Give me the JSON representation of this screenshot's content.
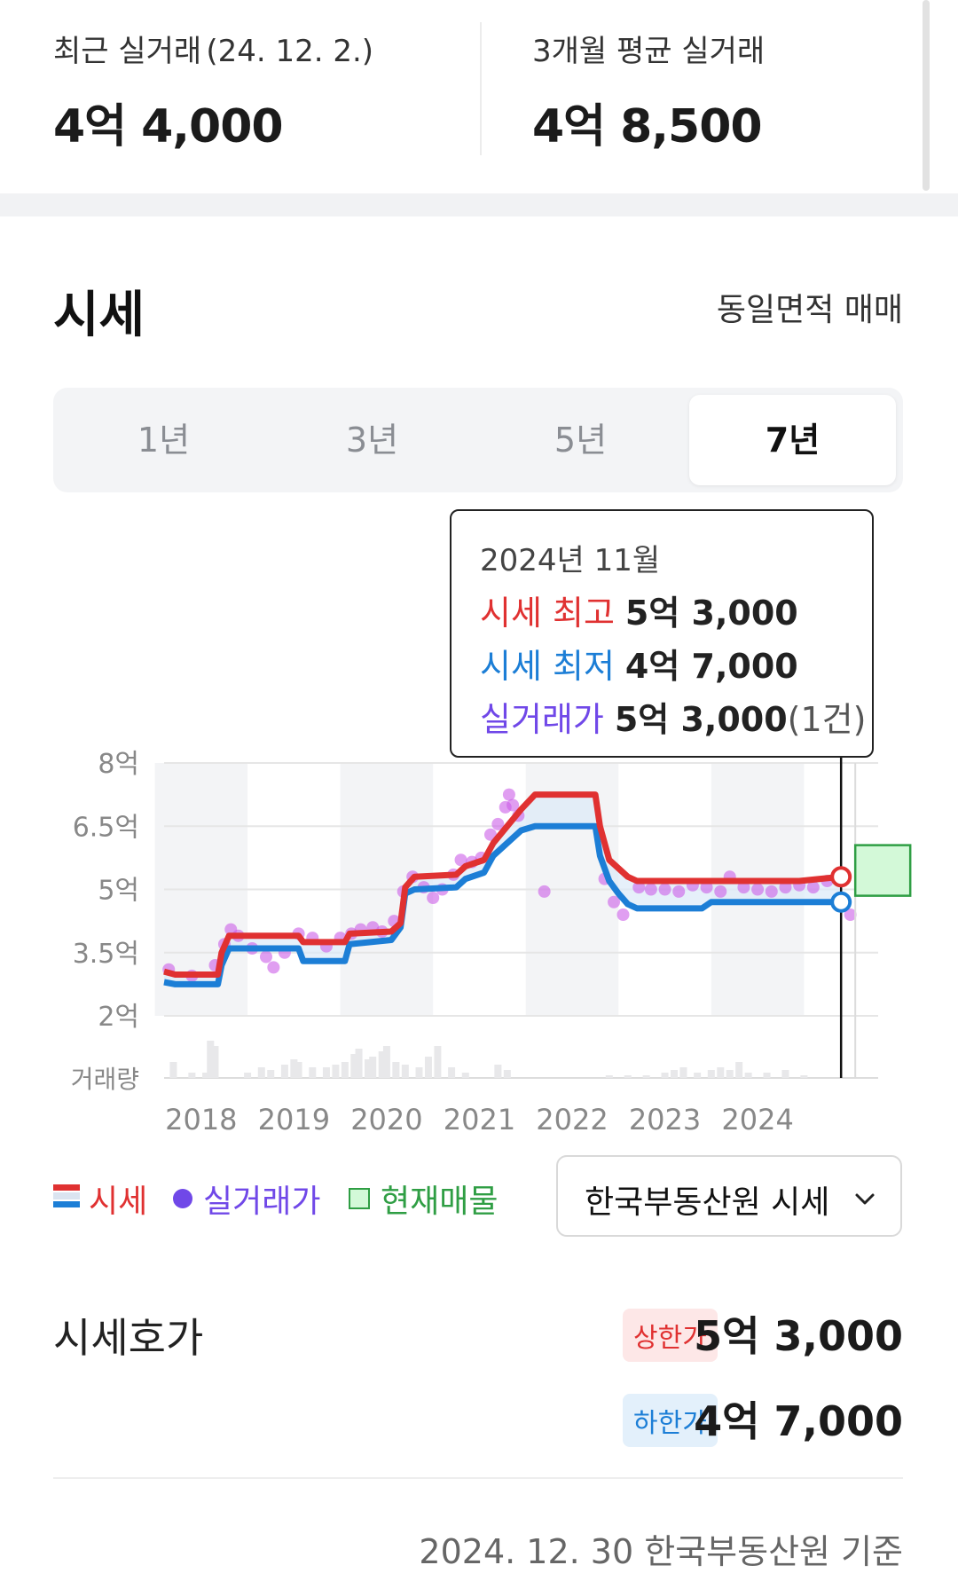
{
  "summary": {
    "recent": {
      "label": "최근 실거래",
      "date": "(24. 12. 2.)",
      "value": "4억 4,000"
    },
    "avg3m": {
      "label": "3개월 평균 실거래",
      "value": "4억 8,500"
    }
  },
  "section": {
    "title": "시세",
    "filter": "동일면적 매매"
  },
  "tabs": [
    {
      "label": "1년",
      "active": false
    },
    {
      "label": "3년",
      "active": false
    },
    {
      "label": "5년",
      "active": false
    },
    {
      "label": "7년",
      "active": true
    }
  ],
  "tooltip": {
    "date": "2024년 11월",
    "high_label": "시세 최고",
    "high_value": "5억 3,000",
    "low_label": "시세 최저",
    "low_value": "4억 7,000",
    "deal_label": "실거래가",
    "deal_value": "5억 3,000",
    "deal_count": "(1건)"
  },
  "legend": {
    "price": "시세",
    "deal": "실거래가",
    "listing": "현재매물"
  },
  "source_select": {
    "value": "한국부동산원 시세"
  },
  "range": {
    "title": "시세호가",
    "high_badge": "상한가",
    "high_value": "5억 3,000",
    "low_badge": "하한가",
    "low_value": "4억 7,000"
  },
  "basis": "2024. 12. 30 한국부동산원 기준",
  "colors": {
    "high": "#e03131",
    "low": "#1c7ed6",
    "deal": "#7048e8",
    "dealDot": "#cc5de8",
    "listing": "#2f9e44",
    "text": "#222222"
  },
  "chart_data": {
    "type": "line",
    "y_ticks": [
      "8억",
      "6.5억",
      "5억",
      "3.5억",
      "2억"
    ],
    "y_values": [
      8,
      6.5,
      5,
      3.5,
      2
    ],
    "volume_label": "거래량",
    "x_ticks": [
      "2018",
      "2019",
      "2020",
      "2021",
      "2022",
      "2023",
      "2024"
    ],
    "ylim": [
      2,
      8
    ],
    "xlim": [
      2017.6,
      2025.3
    ],
    "series": [
      {
        "name": "시세 최고",
        "points": [
          [
            2017.6,
            3.05
          ],
          [
            2017.72,
            2.98
          ],
          [
            2018.18,
            2.98
          ],
          [
            2018.22,
            3.5
          ],
          [
            2018.3,
            3.9
          ],
          [
            2019.05,
            3.9
          ],
          [
            2019.1,
            3.75
          ],
          [
            2019.55,
            3.75
          ],
          [
            2019.6,
            3.95
          ],
          [
            2020.05,
            4.0
          ],
          [
            2020.15,
            4.2
          ],
          [
            2020.2,
            5.05
          ],
          [
            2020.3,
            5.3
          ],
          [
            2020.75,
            5.35
          ],
          [
            2020.85,
            5.55
          ],
          [
            2021.05,
            5.7
          ],
          [
            2021.15,
            6.1
          ],
          [
            2021.3,
            6.5
          ],
          [
            2021.45,
            6.9
          ],
          [
            2021.6,
            7.25
          ],
          [
            2022.25,
            7.25
          ],
          [
            2022.3,
            6.5
          ],
          [
            2022.4,
            5.7
          ],
          [
            2022.5,
            5.5
          ],
          [
            2022.6,
            5.3
          ],
          [
            2022.7,
            5.2
          ],
          [
            2024.45,
            5.2
          ],
          [
            2024.9,
            5.3
          ]
        ]
      },
      {
        "name": "시세 최저",
        "points": [
          [
            2017.6,
            2.8
          ],
          [
            2017.72,
            2.75
          ],
          [
            2018.18,
            2.75
          ],
          [
            2018.22,
            3.2
          ],
          [
            2018.3,
            3.6
          ],
          [
            2019.05,
            3.6
          ],
          [
            2019.1,
            3.3
          ],
          [
            2019.55,
            3.3
          ],
          [
            2019.6,
            3.7
          ],
          [
            2020.05,
            3.8
          ],
          [
            2020.15,
            4.1
          ],
          [
            2020.2,
            4.9
          ],
          [
            2020.3,
            5.0
          ],
          [
            2020.75,
            5.05
          ],
          [
            2020.85,
            5.25
          ],
          [
            2021.05,
            5.4
          ],
          [
            2021.15,
            5.8
          ],
          [
            2021.3,
            6.1
          ],
          [
            2021.45,
            6.4
          ],
          [
            2021.6,
            6.5
          ],
          [
            2022.25,
            6.5
          ],
          [
            2022.3,
            5.8
          ],
          [
            2022.4,
            5.2
          ],
          [
            2022.5,
            4.9
          ],
          [
            2022.6,
            4.65
          ],
          [
            2022.7,
            4.55
          ],
          [
            2023.4,
            4.55
          ],
          [
            2023.5,
            4.7
          ],
          [
            2024.9,
            4.7
          ]
        ]
      }
    ],
    "deals": [
      [
        2017.65,
        3.1
      ],
      [
        2017.9,
        2.95
      ],
      [
        2018.15,
        3.2
      ],
      [
        2018.25,
        3.7
      ],
      [
        2018.32,
        4.05
      ],
      [
        2018.4,
        3.9
      ],
      [
        2018.55,
        3.6
      ],
      [
        2018.7,
        3.4
      ],
      [
        2018.78,
        3.15
      ],
      [
        2018.9,
        3.5
      ],
      [
        2019.05,
        3.95
      ],
      [
        2019.2,
        3.85
      ],
      [
        2019.35,
        3.65
      ],
      [
        2019.5,
        3.85
      ],
      [
        2019.62,
        3.95
      ],
      [
        2019.72,
        4.05
      ],
      [
        2019.85,
        4.1
      ],
      [
        2019.95,
        4.0
      ],
      [
        2020.08,
        4.25
      ],
      [
        2020.18,
        4.95
      ],
      [
        2020.28,
        5.3
      ],
      [
        2020.4,
        5.05
      ],
      [
        2020.5,
        4.8
      ],
      [
        2020.6,
        5.0
      ],
      [
        2020.72,
        5.35
      ],
      [
        2020.8,
        5.7
      ],
      [
        2020.92,
        5.65
      ],
      [
        2021.02,
        5.75
      ],
      [
        2021.12,
        6.3
      ],
      [
        2021.2,
        6.55
      ],
      [
        2021.28,
        6.95
      ],
      [
        2021.32,
        7.25
      ],
      [
        2021.36,
        7.0
      ],
      [
        2021.42,
        6.75
      ],
      [
        2021.7,
        4.95
      ],
      [
        2022.35,
        5.25
      ],
      [
        2022.45,
        4.7
      ],
      [
        2022.55,
        4.4
      ],
      [
        2022.72,
        5.05
      ],
      [
        2022.85,
        5.0
      ],
      [
        2023.0,
        5.0
      ],
      [
        2023.15,
        4.95
      ],
      [
        2023.3,
        5.1
      ],
      [
        2023.45,
        5.05
      ],
      [
        2023.6,
        4.95
      ],
      [
        2023.7,
        5.3
      ],
      [
        2023.85,
        5.05
      ],
      [
        2024.0,
        5.0
      ],
      [
        2024.15,
        4.95
      ],
      [
        2024.3,
        5.05
      ],
      [
        2024.45,
        5.1
      ],
      [
        2024.6,
        5.05
      ],
      [
        2024.75,
        5.2
      ],
      [
        2024.9,
        5.3
      ],
      [
        2025.0,
        4.4
      ]
    ],
    "volumes": [
      [
        2017.7,
        0.3
      ],
      [
        2017.9,
        0.1
      ],
      [
        2018.05,
        0.1
      ],
      [
        2018.1,
        0.7
      ],
      [
        2018.15,
        0.6
      ],
      [
        2018.5,
        0.1
      ],
      [
        2018.65,
        0.2
      ],
      [
        2018.75,
        0.15
      ],
      [
        2018.9,
        0.25
      ],
      [
        2019.0,
        0.35
      ],
      [
        2019.05,
        0.3
      ],
      [
        2019.2,
        0.2
      ],
      [
        2019.35,
        0.2
      ],
      [
        2019.45,
        0.25
      ],
      [
        2019.55,
        0.3
      ],
      [
        2019.65,
        0.45
      ],
      [
        2019.7,
        0.55
      ],
      [
        2019.8,
        0.35
      ],
      [
        2019.85,
        0.4
      ],
      [
        2019.95,
        0.5
      ],
      [
        2020.0,
        0.6
      ],
      [
        2020.1,
        0.3
      ],
      [
        2020.2,
        0.25
      ],
      [
        2020.35,
        0.2
      ],
      [
        2020.45,
        0.4
      ],
      [
        2020.55,
        0.6
      ],
      [
        2020.7,
        0.2
      ],
      [
        2020.85,
        0.1
      ],
      [
        2021.2,
        0.25
      ],
      [
        2021.3,
        0.15
      ],
      [
        2022.4,
        0.05
      ],
      [
        2022.6,
        0.05
      ],
      [
        2022.8,
        0.05
      ],
      [
        2023.0,
        0.1
      ],
      [
        2023.1,
        0.15
      ],
      [
        2023.2,
        0.2
      ],
      [
        2023.35,
        0.1
      ],
      [
        2023.5,
        0.15
      ],
      [
        2023.6,
        0.2
      ],
      [
        2023.7,
        0.15
      ],
      [
        2023.8,
        0.3
      ],
      [
        2023.9,
        0.1
      ],
      [
        2024.1,
        0.1
      ],
      [
        2024.3,
        0.15
      ],
      [
        2024.5,
        0.05
      ]
    ],
    "current_point": {
      "x": 2024.9,
      "high": 5.3,
      "low": 4.7
    },
    "listing_range": [
      4.85,
      6.05
    ],
    "legend_placement": "bottom-left"
  }
}
